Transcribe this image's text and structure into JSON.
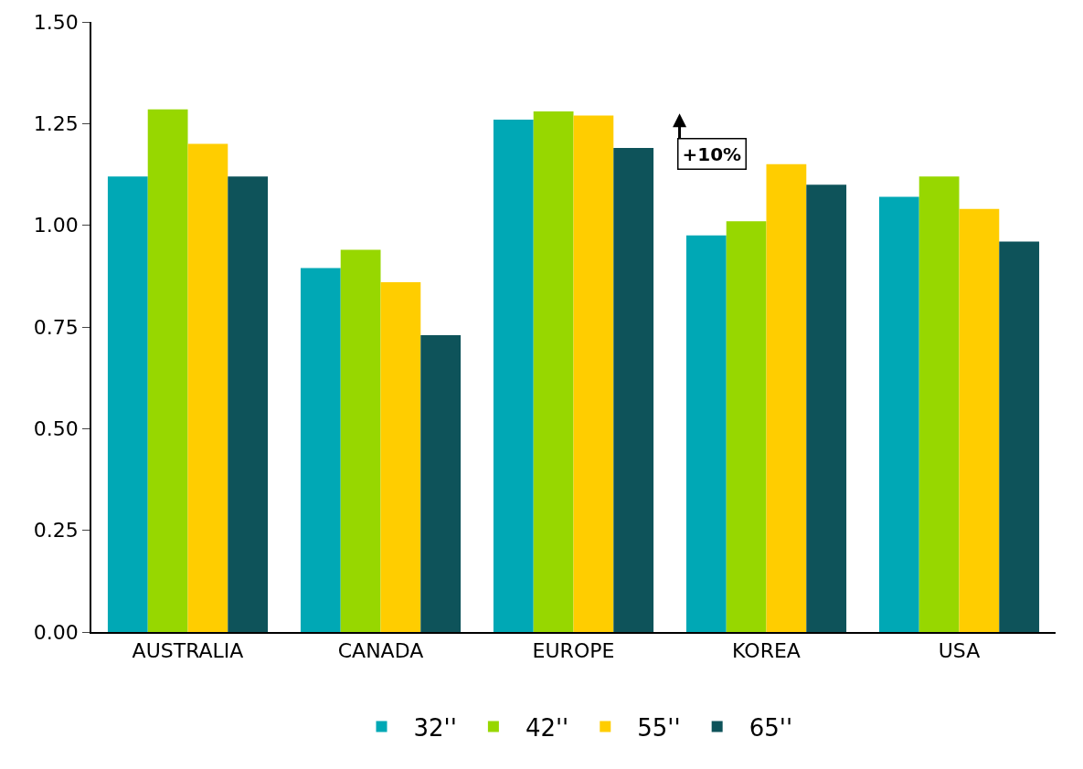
{
  "chart_data": {
    "type": "bar",
    "categories": [
      "AUSTRALIA",
      "CANADA",
      "EUROPE",
      "KOREA",
      "USA"
    ],
    "series": [
      {
        "name": "32''",
        "color": "#00a8b5",
        "values": [
          1.12,
          0.895,
          1.26,
          0.975,
          1.07
        ]
      },
      {
        "name": "42''",
        "color": "#97d700",
        "values": [
          1.285,
          0.94,
          1.28,
          1.01,
          1.12
        ]
      },
      {
        "name": "55''",
        "color": "#ffcd00",
        "values": [
          1.2,
          0.86,
          1.27,
          1.15,
          1.04
        ]
      },
      {
        "name": "65''",
        "color": "#0e535a",
        "values": [
          1.12,
          0.73,
          1.19,
          1.1,
          0.96
        ]
      }
    ],
    "ylim": [
      0,
      1.5
    ],
    "yticks": [
      {
        "value": 0,
        "label": "0.00"
      },
      {
        "value": 0.25,
        "label": "0.25"
      },
      {
        "value": 0.5,
        "label": "0.50"
      },
      {
        "value": 0.75,
        "label": "0.75"
      },
      {
        "value": 1,
        "label": "1.00"
      },
      {
        "value": 1.25,
        "label": "1.25"
      },
      {
        "value": 1.5,
        "label": "1.50"
      }
    ],
    "annotations": [
      "+10%"
    ],
    "legend": "bottom"
  }
}
